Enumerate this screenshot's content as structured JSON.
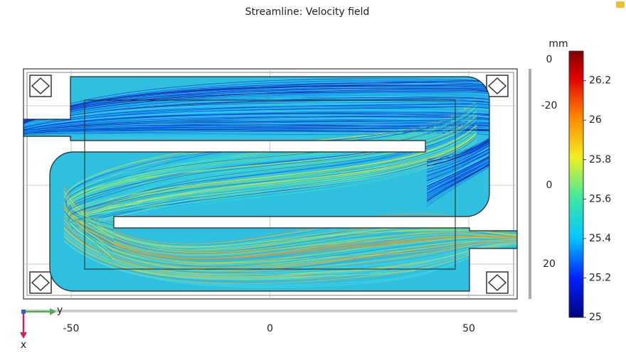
{
  "title": "Streamline: Velocity field",
  "axes": {
    "horizontal_ticks": [
      -50,
      0,
      50
    ],
    "vertical_ticks": [
      0,
      -20,
      0,
      20
    ],
    "horizontal_label": "y",
    "vertical_label": "x"
  },
  "colorbar": {
    "unit": "mm",
    "range": [
      25,
      26.35
    ],
    "ticks": [
      26.2,
      26,
      25.8,
      25.6,
      25.4,
      25.2,
      25
    ]
  }
}
